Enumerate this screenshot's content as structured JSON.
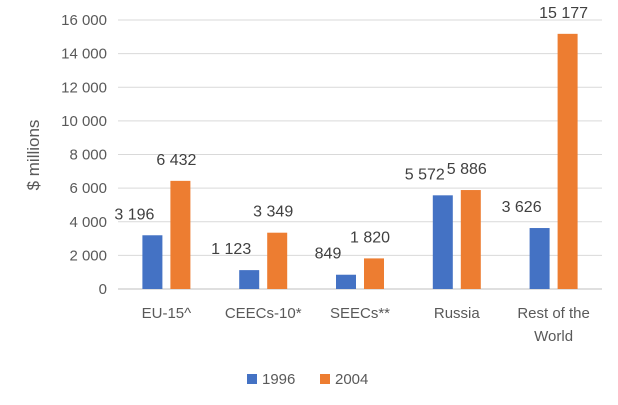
{
  "chart_data": {
    "type": "bar",
    "ylabel": "$ millions",
    "ylim": [
      0,
      16000
    ],
    "y_ticks": [
      "0",
      "2 000",
      "4 000",
      "6 000",
      "8 000",
      "10 000",
      "12 000",
      "14 000",
      "16 000"
    ],
    "grid": true,
    "legend_position": "bottom",
    "categories": [
      [
        "EU-15^"
      ],
      [
        "CEECs-10*"
      ],
      [
        "SEECs**"
      ],
      [
        "Russia"
      ],
      [
        "Rest of the",
        "World"
      ]
    ],
    "series": [
      {
        "name": "1996",
        "color": "#4472C4",
        "values": [
          3196,
          1123,
          849,
          5572,
          3626
        ],
        "labels": [
          "3 196",
          "1 123",
          "849",
          "5 572",
          "3 626"
        ]
      },
      {
        "name": "2004",
        "color": "#ED7D31",
        "values": [
          6432,
          3349,
          1820,
          5886,
          15177
        ],
        "labels": [
          "6 432",
          "3 349",
          "1 820",
          "5 886",
          "15 177"
        ]
      }
    ]
  }
}
